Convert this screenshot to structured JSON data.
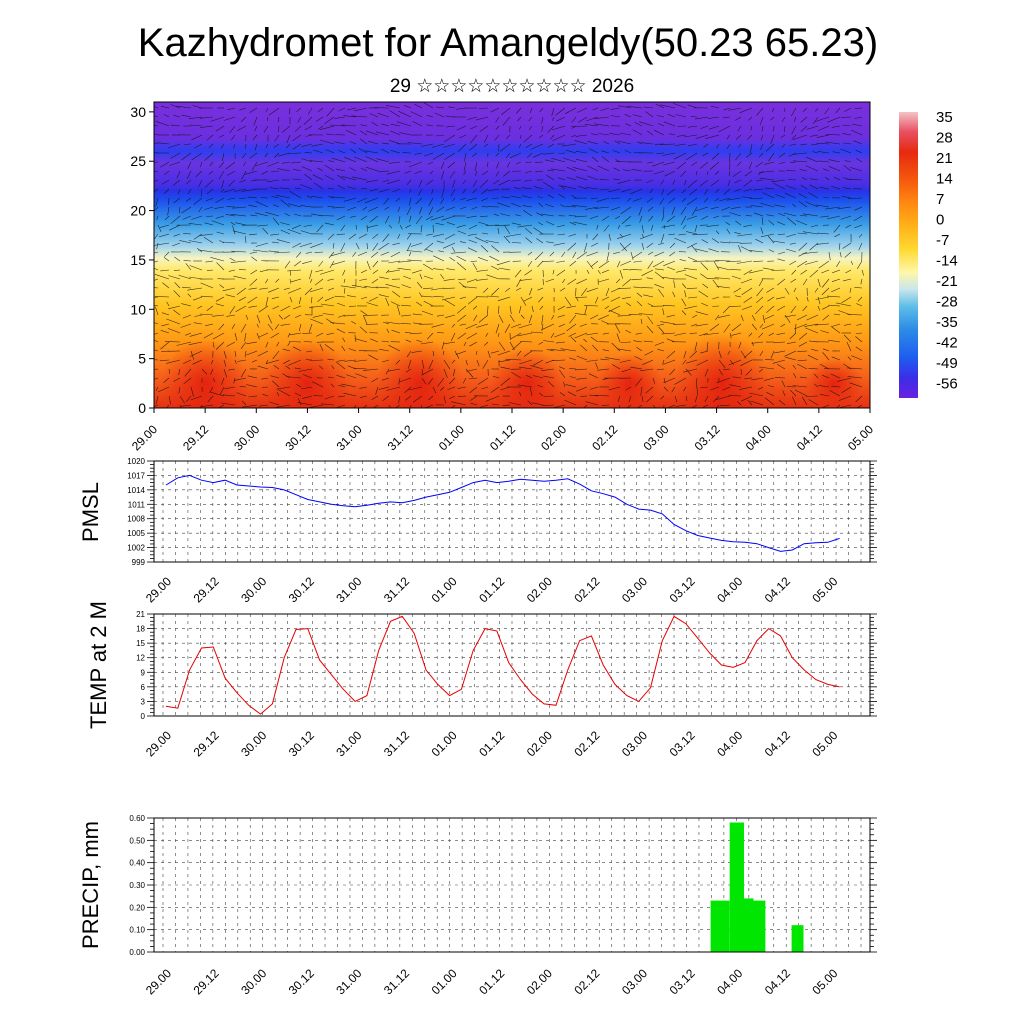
{
  "title": "Kazhydromet for Amangeldy(50.23 65.23)",
  "subtitle": "29 ☆☆☆☆☆☆☆☆☆☆ 2026",
  "time_labels": [
    "29.00",
    "29.12",
    "30.00",
    "30.12",
    "31.00",
    "31.12",
    "01.00",
    "01.12",
    "02.00",
    "02.12",
    "03.00",
    "03.12",
    "04.00",
    "04.12",
    "05.00"
  ],
  "chart_data": [
    {
      "type": "heatmap",
      "title": "",
      "ylabel": "",
      "ylim": [
        0,
        31
      ],
      "y_ticks": [
        0,
        5,
        10,
        15,
        20,
        25,
        30
      ],
      "colorbar": {
        "labels": [
          "35",
          "28",
          "21",
          "14",
          "7",
          "0",
          "-7",
          "-14",
          "-21",
          "-28",
          "-35",
          "-42",
          "-49",
          "-56"
        ],
        "range": [
          -63,
          42
        ],
        "colors": [
          "#5b1fd8",
          "#3b2ee8",
          "#1f5cf0",
          "#2d8ce6",
          "#5fbde8",
          "#c8e6ec",
          "#fff7a8",
          "#ffd830",
          "#ffb21a",
          "#ff8a10",
          "#f55a0e",
          "#e62a10",
          "#e84e62",
          "#f3c4c4"
        ]
      },
      "temperature_profile": {
        "heights": [
          0,
          3,
          6,
          10,
          14,
          16,
          18,
          21,
          22,
          23,
          26,
          31
        ],
        "values": [
          20,
          14,
          7,
          0,
          -10,
          -22,
          -36,
          -46,
          -60,
          -56,
          -58,
          -60
        ]
      },
      "wind_vectors": "dense black arrows overlaid on field"
    },
    {
      "type": "line",
      "ylabel": "PMSL",
      "ylim": [
        999,
        1020
      ],
      "y_ticks": [
        "999",
        "1002",
        "1005",
        "1008",
        "1011",
        "1014",
        "1017",
        "1020"
      ],
      "series": [
        {
          "color": "#0000ff",
          "values": [
            1015,
            1016.5,
            1017,
            1016,
            1015.5,
            1016,
            1015,
            1014.8,
            1014.6,
            1014.5,
            1014,
            1013,
            1012,
            1011.5,
            1011,
            1010.7,
            1010.5,
            1010.8,
            1011.2,
            1011.5,
            1011.3,
            1011.8,
            1012.5,
            1013,
            1013.5,
            1014.5,
            1015.5,
            1016,
            1015.5,
            1015.8,
            1016.2,
            1016,
            1015.8,
            1016,
            1016.3,
            1015.2,
            1013.8,
            1013.2,
            1012.5,
            1011,
            1010,
            1009.8,
            1009,
            1006.8,
            1005.5,
            1004.5,
            1004,
            1003.5,
            1003.2,
            1003.1,
            1002.8,
            1002,
            1001.2,
            1001.5,
            1002.8,
            1003,
            1003.1,
            1003.9
          ]
        }
      ]
    },
    {
      "type": "line",
      "ylabel": "TEMP at 2 M",
      "ylim": [
        0,
        21
      ],
      "y_ticks": [
        "0",
        "3",
        "6",
        "9",
        "12",
        "15",
        "18",
        "21"
      ],
      "series": [
        {
          "color": "#e60000",
          "values": [
            2,
            1.6,
            9.5,
            14,
            14.2,
            7.8,
            4.8,
            2.2,
            0.4,
            2.5,
            12,
            17.8,
            18,
            11.5,
            8.5,
            5.5,
            3,
            4.2,
            13.5,
            19.5,
            20.5,
            17,
            9.5,
            6.5,
            4.2,
            5.5,
            13.5,
            18,
            17.5,
            11,
            7.5,
            4.5,
            2.5,
            2.2,
            9.5,
            15.5,
            16.5,
            10.5,
            6.5,
            4.2,
            3,
            5.8,
            15.5,
            20.5,
            19,
            16,
            13,
            10.5,
            10,
            11,
            15.5,
            18,
            16.5,
            12,
            9.5,
            7.5,
            6.5,
            6
          ]
        }
      ]
    },
    {
      "type": "bar",
      "ylabel": "PRECIP, mm",
      "ylim": [
        0,
        0.6
      ],
      "y_ticks": [
        "0.00",
        "0.10",
        "0.20",
        "0.30",
        "0.40",
        "0.50",
        "0.60"
      ],
      "bar_color": "#00e600",
      "bars": [
        {
          "time_index": 11.4,
          "width": 0.4,
          "value": 0.23
        },
        {
          "time_index": 11.8,
          "width": 0.3,
          "value": 0.58
        },
        {
          "time_index": 12.1,
          "width": 0.2,
          "value": 0.24
        },
        {
          "time_index": 12.3,
          "width": 0.25,
          "value": 0.23
        },
        {
          "time_index": 13.1,
          "width": 0.25,
          "value": 0.12
        }
      ]
    }
  ]
}
